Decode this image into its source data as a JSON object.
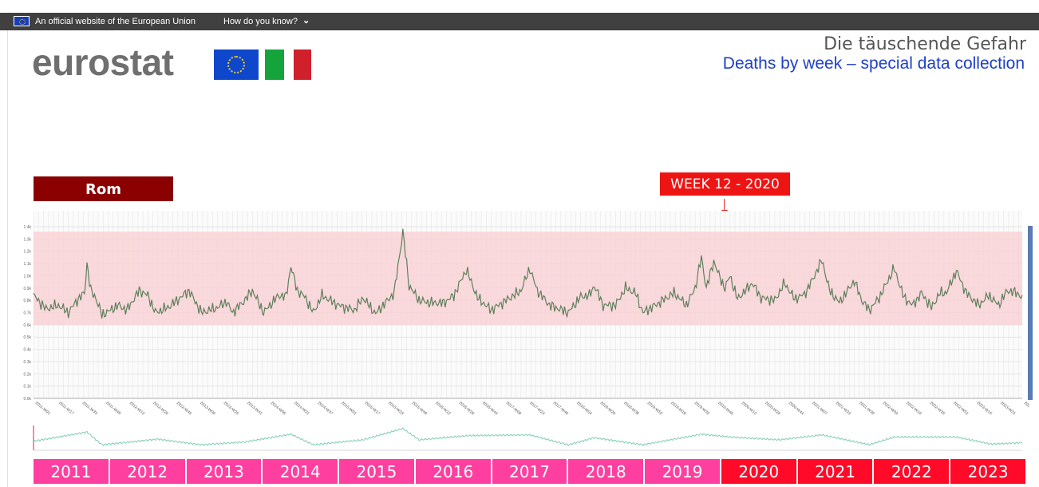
{
  "topbar": {
    "official_text": "An official website of the European Union",
    "how_text": "How do you know?",
    "chevron": "⌄"
  },
  "logo": {
    "wordmark": "eurostat"
  },
  "header": {
    "title": "Die täuschende Gefahr",
    "subtitle": "Deaths by week – special data collection"
  },
  "city_label": "Rom",
  "highlight_label": "WEEK 12 - 2020",
  "colors": {
    "dark_red": "#8b0000",
    "highlight_red": "#ee1414",
    "band_pink": "#f9d1d4",
    "line_green": "#5f7f5c",
    "nav_line": "#7fcdb6",
    "year_pink": "#ff3fa0",
    "year_red": "#ff0a28"
  },
  "years": [
    {
      "label": "2011",
      "c": "pink"
    },
    {
      "label": "2012",
      "c": "pink"
    },
    {
      "label": "2013",
      "c": "pink"
    },
    {
      "label": "2014",
      "c": "pink"
    },
    {
      "label": "2015",
      "c": "pink"
    },
    {
      "label": "2016",
      "c": "pink"
    },
    {
      "label": "2017",
      "c": "pink"
    },
    {
      "label": "2018",
      "c": "pink"
    },
    {
      "label": "2019",
      "c": "pink"
    },
    {
      "label": "2020",
      "c": "red"
    },
    {
      "label": "2021",
      "c": "red"
    },
    {
      "label": "2022",
      "c": "red"
    },
    {
      "label": "2023",
      "c": "red"
    }
  ],
  "chart_data": {
    "type": "line",
    "title": "",
    "xlabel": "",
    "ylabel": "",
    "ylim": [
      0,
      1400
    ],
    "y_ticks": [
      "0.0k",
      "0.1k",
      "0.2k",
      "0.3k",
      "0.4k",
      "0.5k",
      "0.6k",
      "0.7k",
      "0.8k",
      "0.9k",
      "1.0k",
      "1.1k",
      "1.2k",
      "1.3k",
      "1.4k"
    ],
    "band": [
      600,
      1360
    ],
    "x_tick_labels": [
      "2011-W01",
      "2011-W17",
      "2011-W33",
      "2011-W49",
      "2012-W13",
      "2012-W29",
      "2012-W45",
      "2013-W09",
      "2013-W25",
      "2013-W41",
      "2014-W05",
      "2014-W21",
      "2014-W37",
      "2015-W01",
      "2015-W17",
      "2015-W33",
      "2015-W49",
      "2016-W12",
      "2016-W28",
      "2016-W44",
      "2017-W08",
      "2017-W24",
      "2017-W40",
      "2018-W04",
      "2018-W20",
      "2018-W36",
      "2019-W52",
      "2019-W16",
      "2019-W32",
      "2019-W48",
      "2020-W12",
      "2020-W28",
      "2020-W44",
      "2021-W07",
      "2021-W23",
      "2021-W39",
      "2022-W03",
      "2022-W19",
      "2022-W35",
      "2022-W51",
      "2023-W15",
      "2023-W31",
      "2023-W47"
    ],
    "anchors": [
      [
        0,
        840
      ],
      [
        10,
        730
      ],
      [
        20,
        760
      ],
      [
        28,
        700
      ],
      [
        35,
        800
      ],
      [
        41,
        860
      ],
      [
        43,
        1100
      ],
      [
        46,
        880
      ],
      [
        50,
        820
      ],
      [
        55,
        680
      ],
      [
        62,
        720
      ],
      [
        68,
        760
      ],
      [
        75,
        720
      ],
      [
        85,
        880
      ],
      [
        92,
        840
      ],
      [
        98,
        700
      ],
      [
        108,
        740
      ],
      [
        118,
        820
      ],
      [
        125,
        880
      ],
      [
        135,
        700
      ],
      [
        148,
        740
      ],
      [
        155,
        790
      ],
      [
        160,
        700
      ],
      [
        168,
        780
      ],
      [
        176,
        880
      ],
      [
        185,
        700
      ],
      [
        197,
        840
      ],
      [
        203,
        830
      ],
      [
        207,
        1080
      ],
      [
        212,
        880
      ],
      [
        218,
        830
      ],
      [
        225,
        700
      ],
      [
        232,
        840
      ],
      [
        245,
        760
      ],
      [
        258,
        720
      ],
      [
        265,
        820
      ],
      [
        275,
        690
      ],
      [
        290,
        860
      ],
      [
        297,
        1360
      ],
      [
        302,
        920
      ],
      [
        310,
        800
      ],
      [
        318,
        780
      ],
      [
        330,
        780
      ],
      [
        338,
        840
      ],
      [
        348,
        1050
      ],
      [
        357,
        820
      ],
      [
        368,
        720
      ],
      [
        380,
        800
      ],
      [
        392,
        880
      ],
      [
        399,
        1060
      ],
      [
        405,
        880
      ],
      [
        415,
        760
      ],
      [
        430,
        700
      ],
      [
        440,
        830
      ],
      [
        447,
        840
      ],
      [
        451,
        920
      ],
      [
        458,
        760
      ],
      [
        468,
        760
      ],
      [
        476,
        900
      ],
      [
        484,
        860
      ],
      [
        490,
        700
      ],
      [
        500,
        760
      ],
      [
        506,
        800
      ],
      [
        515,
        860
      ],
      [
        525,
        760
      ],
      [
        532,
        900
      ],
      [
        537,
        1150
      ],
      [
        541,
        900
      ],
      [
        547,
        1120
      ],
      [
        552,
        980
      ],
      [
        556,
        900
      ],
      [
        560,
        1000
      ],
      [
        566,
        810
      ],
      [
        578,
        940
      ],
      [
        585,
        820
      ],
      [
        596,
        800
      ],
      [
        604,
        940
      ],
      [
        612,
        810
      ],
      [
        620,
        850
      ],
      [
        626,
        960
      ],
      [
        634,
        1130
      ],
      [
        640,
        880
      ],
      [
        648,
        780
      ],
      [
        660,
        960
      ],
      [
        666,
        800
      ],
      [
        672,
        720
      ],
      [
        680,
        820
      ],
      [
        686,
        940
      ],
      [
        692,
        1060
      ],
      [
        700,
        820
      ],
      [
        707,
        760
      ],
      [
        714,
        860
      ],
      [
        722,
        740
      ],
      [
        729,
        860
      ],
      [
        734,
        860
      ],
      [
        742,
        1040
      ],
      [
        750,
        860
      ],
      [
        760,
        760
      ],
      [
        768,
        840
      ],
      [
        776,
        760
      ],
      [
        783,
        880
      ],
      [
        791,
        860
      ],
      [
        795,
        820
      ]
    ],
    "nav_anchors": [
      [
        0,
        30
      ],
      [
        43,
        95
      ],
      [
        55,
        5
      ],
      [
        100,
        45
      ],
      [
        135,
        5
      ],
      [
        170,
        25
      ],
      [
        207,
        80
      ],
      [
        225,
        5
      ],
      [
        265,
        40
      ],
      [
        297,
        120
      ],
      [
        310,
        40
      ],
      [
        350,
        70
      ],
      [
        399,
        75
      ],
      [
        430,
        5
      ],
      [
        451,
        55
      ],
      [
        490,
        5
      ],
      [
        537,
        80
      ],
      [
        560,
        60
      ],
      [
        600,
        40
      ],
      [
        634,
        75
      ],
      [
        672,
        5
      ],
      [
        692,
        60
      ],
      [
        742,
        60
      ],
      [
        770,
        10
      ],
      [
        795,
        20
      ]
    ]
  }
}
